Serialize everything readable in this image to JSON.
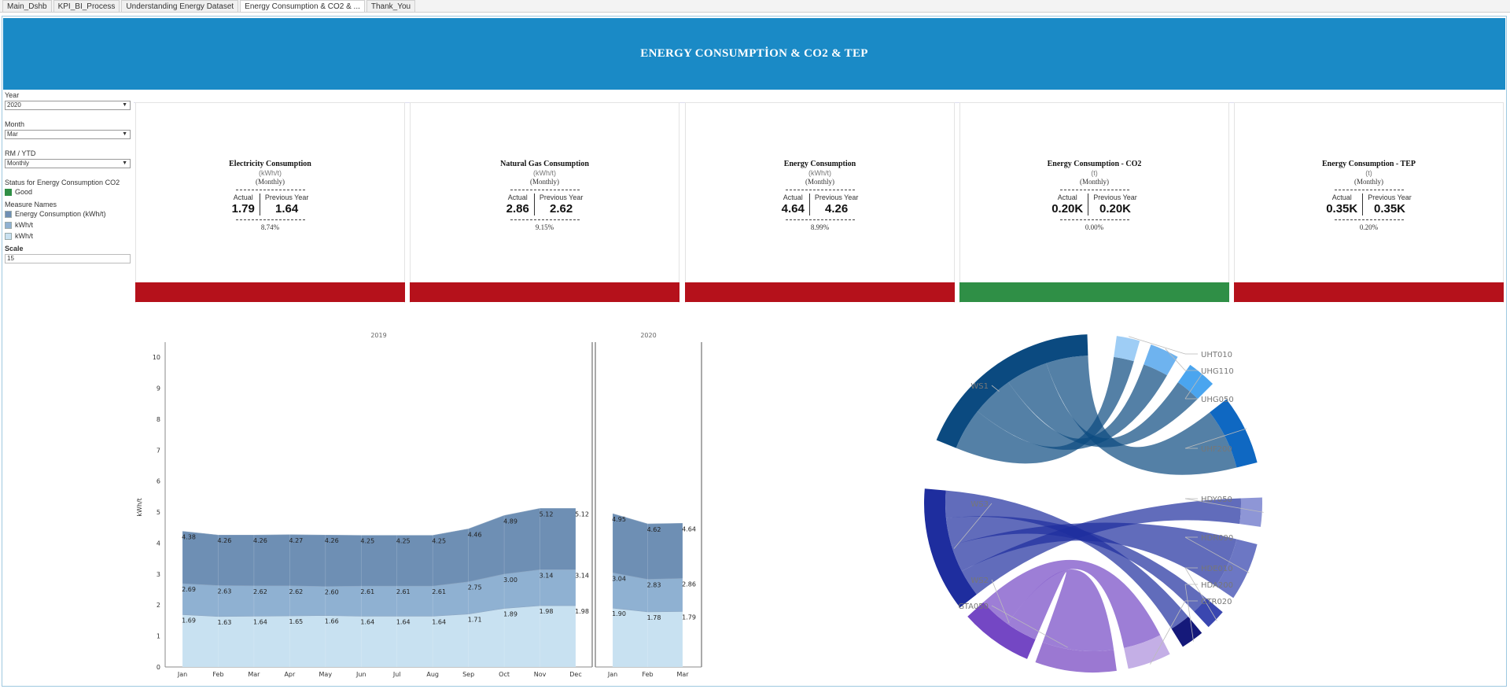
{
  "tabs": [
    {
      "label": "Main_Dshb",
      "active": false
    },
    {
      "label": "KPI_BI_Process",
      "active": false
    },
    {
      "label": "Understanding Energy Dataset",
      "active": false
    },
    {
      "label": "Energy Consumption & CO2 & ...",
      "active": true
    },
    {
      "label": "Thank_You",
      "active": false
    }
  ],
  "header": {
    "title": "ENERGY CONSUMPTİON & CO2 & TEP",
    "color": "#1a8ac6"
  },
  "filters": {
    "year_label": "Year",
    "year_value": "2020",
    "month_label": "Month",
    "month_value": "Mar",
    "rm_label": "RM / YTD",
    "rm_value": "Monthly",
    "status_label": "Status for Energy Consumption CO2",
    "status_good": "Good",
    "measure_label": "Measure Names",
    "measures": [
      {
        "label": "Energy Consumption (kWh/t)",
        "color": "#6e8fb4"
      },
      {
        "label": "kWh/t",
        "color": "#8fb1d2"
      },
      {
        "label": "kWh/t",
        "color": "#c8e1f1"
      }
    ],
    "scale_label": "Scale",
    "scale_value": "15"
  },
  "kpis": [
    {
      "title": "Electricity Consumption",
      "unit": "(kWh/t)",
      "period": "(Monthly)",
      "actual_label": "Actual",
      "prev_label": "Previous Year",
      "actual": "1.79",
      "previous": "1.64",
      "pct": "8.74%",
      "status_color": "#b5111b"
    },
    {
      "title": "Natural Gas Consumption",
      "unit": "(kWh/t)",
      "period": "(Monthly)",
      "actual_label": "Actual",
      "prev_label": "Previous Year",
      "actual": "2.86",
      "previous": "2.62",
      "pct": "9.15%",
      "status_color": "#b5111b"
    },
    {
      "title": "Energy Consumption",
      "unit": "(kWh/t)",
      "period": "(Monthly)",
      "actual_label": "Actual",
      "prev_label": "Previous Year",
      "actual": "4.64",
      "previous": "4.26",
      "pct": "8.99%",
      "status_color": "#b5111b"
    },
    {
      "title": "Energy Consumption - CO2",
      "unit": "(t)",
      "period": "(Monthly)",
      "actual_label": "Actual",
      "prev_label": "Previous Year",
      "actual": "0.20K",
      "previous": "0.20K",
      "pct": "0.00%",
      "status_color": "#2f8f46"
    },
    {
      "title": "Energy Consumption - TEP",
      "unit": "(t)",
      "period": "(Monthly)",
      "actual_label": "Actual",
      "prev_label": "Previous Year",
      "actual": "0.35K",
      "previous": "0.35K",
      "pct": "0.20%",
      "status_color": "#b5111b"
    }
  ],
  "chart_data": [
    {
      "type": "area",
      "ylabel": "kWh/t",
      "ylim": [
        0,
        10
      ],
      "yticks": [
        0,
        1,
        2,
        3,
        4,
        5,
        6,
        7,
        8,
        9,
        10
      ],
      "grid": false,
      "panels": [
        {
          "title": "2019",
          "categories": [
            "Jan",
            "Feb",
            "Mar",
            "Apr",
            "May",
            "Jun",
            "Jul",
            "Aug",
            "Sep",
            "Oct",
            "Nov",
            "Dec"
          ],
          "series": [
            {
              "name": "kWh/t",
              "color": "#c8e1f1",
              "values": [
                1.69,
                1.63,
                1.64,
                1.65,
                1.66,
                1.64,
                1.64,
                1.64,
                1.71,
                1.89,
                1.98,
                1.98
              ]
            },
            {
              "name": "kWh/t",
              "color": "#8fb1d2",
              "values": [
                2.69,
                2.63,
                2.62,
                2.62,
                2.6,
                2.61,
                2.61,
                2.61,
                2.75,
                3.0,
                3.14,
                3.14
              ]
            },
            {
              "name": "Energy Consumption (kWh/t)",
              "color": "#6e8fb4",
              "values": [
                4.38,
                4.26,
                4.26,
                4.27,
                4.26,
                4.25,
                4.25,
                4.25,
                4.46,
                4.89,
                5.12,
                5.12
              ]
            }
          ]
        },
        {
          "title": "2020",
          "categories": [
            "Jan",
            "Feb",
            "Mar"
          ],
          "series": [
            {
              "name": "kWh/t",
              "color": "#c8e1f1",
              "values": [
                1.9,
                1.78,
                1.79
              ]
            },
            {
              "name": "kWh/t",
              "color": "#8fb1d2",
              "values": [
                3.04,
                2.83,
                2.86
              ]
            },
            {
              "name": "Energy Consumption (kWh/t)",
              "color": "#6e8fb4",
              "values": [
                4.95,
                4.62,
                4.64
              ]
            }
          ]
        }
      ]
    },
    {
      "type": "chord",
      "sources": [
        {
          "name": "WS1",
          "color": "#0b4a80",
          "targets": [
            "UHT010",
            "UHG110",
            "UHG050",
            "UHF200"
          ]
        },
        {
          "name": "WS3",
          "color": "#1e2d9e",
          "targets": [
            "HDY050",
            "HDR090",
            "HDE010",
            "HDA200"
          ]
        },
        {
          "name": "WS2",
          "color": "#7447c4",
          "targets": [
            "GTA050",
            "GTR020"
          ]
        }
      ],
      "targets": [
        {
          "name": "UHT010",
          "color": "#9ecdf5"
        },
        {
          "name": "UHG110",
          "color": "#6eb3ef"
        },
        {
          "name": "UHG050",
          "color": "#4aa5ef"
        },
        {
          "name": "UHF200",
          "color": "#0f68c2"
        },
        {
          "name": "HDY050",
          "color": "#8e96d6"
        },
        {
          "name": "HDR090",
          "color": "#6c77c4"
        },
        {
          "name": "HDE010",
          "color": "#3a47b0"
        },
        {
          "name": "HDA200",
          "color": "#15197a"
        },
        {
          "name": "GTR020",
          "color": "#c4afe6"
        },
        {
          "name": "GTA050",
          "color": "#9b78d2"
        }
      ]
    }
  ]
}
